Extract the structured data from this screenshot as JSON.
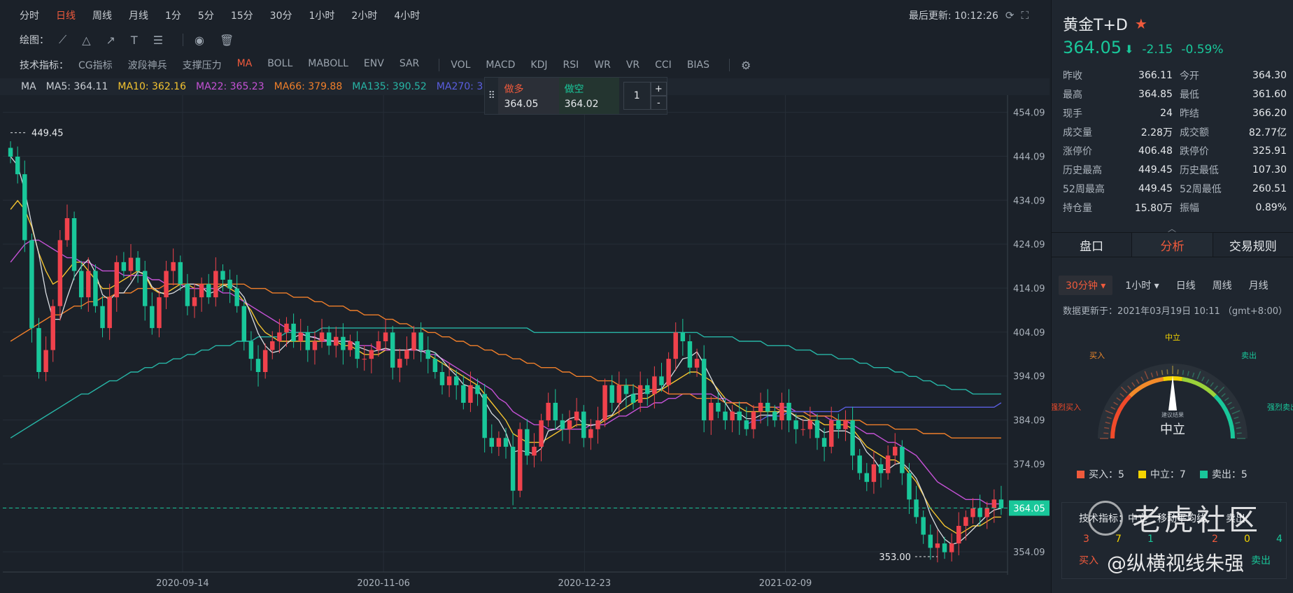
{
  "toolbar": {
    "timeframes": [
      "分时",
      "日线",
      "周线",
      "月线",
      "1分",
      "5分",
      "15分",
      "30分",
      "1小时",
      "2小时",
      "4小时"
    ],
    "active_timeframe": "日线",
    "last_update_label": "最后更新: 10:12:26",
    "draw_label": "绘图：",
    "indicator_label": "技术指标：",
    "indicators": [
      "CG指标",
      "波段神兵",
      "支撑压力",
      "MA",
      "BOLL",
      "MABOLL",
      "ENV",
      "SAR"
    ],
    "indicators2": [
      "VOL",
      "MACD",
      "KDJ",
      "RSI",
      "WR",
      "VR",
      "CCI",
      "BIAS"
    ],
    "active_indicator": "MA"
  },
  "ma_bar": {
    "label": "MA",
    "items": [
      {
        "text": "MA5: 364.11",
        "color": "#c9ced4"
      },
      {
        "text": "MA10: 362.16",
        "color": "#f4c430"
      },
      {
        "text": "MA22: 365.23",
        "color": "#c552d6"
      },
      {
        "text": "MA66: 379.88",
        "color": "#f07f2a"
      },
      {
        "text": "MA135: 390.52",
        "color": "#27b5a6"
      },
      {
        "text": "MA270: 3",
        "color": "#5a5ee0"
      }
    ]
  },
  "trade_box": {
    "long_label": "做多",
    "long_price": "364.05",
    "short_label": "做空",
    "short_price": "364.02",
    "qty": "1",
    "plus": "+",
    "minus": "-"
  },
  "chart_data": {
    "type": "candlestick",
    "y_ticks": [
      "454.09",
      "444.09",
      "434.09",
      "424.09",
      "414.09",
      "404.09",
      "394.09",
      "384.09",
      "374.09",
      "364.09",
      "354.09"
    ],
    "x_ticks": [
      "2020-09-14",
      "2020-11-06",
      "2020-12-23",
      "2021-02-09"
    ],
    "ylim": [
      349.5,
      458
    ],
    "current_price_label": "364.05",
    "current_price": 364.05,
    "high_marker": "449.45",
    "low_marker": "353.00",
    "closes": [
      444,
      440,
      425,
      405,
      395,
      400,
      410,
      425,
      430,
      418,
      412,
      418,
      410,
      405,
      412,
      420,
      418,
      421,
      418,
      410,
      405,
      412,
      418,
      420,
      415,
      410,
      412,
      415,
      412,
      418,
      416,
      414,
      410,
      402,
      398,
      395,
      400,
      402,
      404,
      406,
      402,
      404,
      400,
      402,
      404,
      401,
      403,
      400,
      402,
      398,
      398,
      400,
      402,
      404,
      396,
      398,
      400,
      404,
      400,
      398,
      395,
      392,
      394,
      392,
      388,
      392,
      390,
      380,
      378,
      380,
      378,
      368,
      382,
      376,
      378,
      384,
      388,
      384,
      382,
      384,
      386,
      380,
      382,
      384,
      392,
      388,
      392,
      390,
      388,
      392,
      390,
      394,
      392,
      398,
      404,
      402,
      396,
      398,
      384,
      388,
      386,
      384,
      386,
      384,
      382,
      386,
      388,
      386,
      384,
      388,
      384,
      382,
      382,
      384,
      380,
      378,
      384,
      382,
      384,
      376,
      372,
      370,
      374,
      372,
      376,
      378,
      372,
      366,
      362,
      358,
      355,
      356,
      354,
      356,
      360,
      362,
      364,
      362,
      364,
      366,
      364
    ],
    "colors": {
      "up": "#f0424c",
      "down": "#19c79a"
    },
    "series": [
      {
        "name": "MA10",
        "color": "#f4c430",
        "values": [
          432,
          434,
          432,
          428,
          422,
          418,
          415,
          416,
          418,
          420,
          420,
          418,
          416,
          414,
          414,
          415,
          416,
          417,
          418,
          417,
          414,
          413,
          413,
          414,
          415,
          415,
          414,
          414,
          414,
          414,
          415,
          414,
          413,
          411,
          409,
          406,
          404,
          403,
          402,
          402,
          402,
          402,
          402,
          402,
          402,
          402,
          402,
          401,
          401,
          400,
          399,
          399,
          399,
          400,
          400,
          400,
          400,
          400,
          400,
          399,
          398,
          397,
          396,
          395,
          394,
          393,
          392,
          390,
          388,
          386,
          384,
          381,
          380,
          379,
          379,
          379,
          380,
          381,
          382,
          382,
          383,
          383,
          383,
          383,
          384,
          385,
          386,
          387,
          388,
          389,
          389,
          390,
          391,
          392,
          393,
          394,
          395,
          395,
          394,
          393,
          391,
          389,
          388,
          387,
          386,
          386,
          386,
          386,
          386,
          386,
          386,
          385,
          385,
          384,
          384,
          383,
          383,
          383,
          383,
          382,
          380,
          378,
          377,
          376,
          375,
          375,
          374,
          372,
          370,
          367,
          364,
          362,
          360,
          359,
          358,
          359,
          360,
          360,
          361,
          362,
          362
        ]
      },
      {
        "name": "MA22",
        "color": "#c552d6",
        "values": [
          420,
          422,
          424,
          425,
          425,
          424,
          423,
          422,
          421,
          421,
          420,
          420,
          419,
          418,
          418,
          418,
          417,
          417,
          417,
          417,
          416,
          416,
          415,
          415,
          415,
          414,
          414,
          414,
          414,
          414,
          413,
          413,
          412,
          411,
          410,
          409,
          408,
          407,
          406,
          405,
          404,
          404,
          403,
          403,
          402,
          402,
          402,
          402,
          402,
          401,
          401,
          401,
          400,
          400,
          400,
          400,
          400,
          400,
          400,
          399,
          399,
          398,
          397,
          396,
          395,
          394,
          393,
          392,
          391,
          389,
          388,
          386,
          385,
          384,
          383,
          383,
          382,
          382,
          382,
          382,
          382,
          382,
          383,
          383,
          383,
          384,
          385,
          385,
          386,
          387,
          387,
          388,
          388,
          389,
          389,
          390,
          390,
          390,
          390,
          390,
          389,
          389,
          388,
          388,
          388,
          387,
          387,
          387,
          387,
          387,
          387,
          386,
          386,
          386,
          385,
          385,
          384,
          384,
          384,
          383,
          382,
          381,
          381,
          380,
          379,
          379,
          378,
          377,
          376,
          374,
          372,
          370,
          369,
          368,
          367,
          366,
          366,
          366,
          365,
          365,
          365
        ]
      },
      {
        "name": "MA66",
        "color": "#f07f2a",
        "values": [
          402,
          403,
          404,
          405,
          406,
          407,
          408,
          408,
          409,
          410,
          410,
          411,
          411,
          412,
          412,
          413,
          413,
          413,
          414,
          414,
          414,
          414,
          415,
          415,
          415,
          415,
          415,
          415,
          415,
          415,
          415,
          415,
          415,
          415,
          414,
          414,
          414,
          413,
          413,
          413,
          412,
          412,
          412,
          411,
          411,
          410,
          410,
          410,
          409,
          409,
          408,
          408,
          408,
          407,
          407,
          406,
          406,
          405,
          405,
          404,
          404,
          403,
          403,
          402,
          402,
          401,
          401,
          400,
          400,
          399,
          399,
          398,
          398,
          397,
          397,
          396,
          396,
          396,
          395,
          395,
          394,
          394,
          394,
          393,
          393,
          393,
          392,
          392,
          392,
          391,
          391,
          391,
          391,
          390,
          390,
          390,
          390,
          389,
          389,
          389,
          389,
          388,
          388,
          388,
          388,
          387,
          387,
          387,
          387,
          386,
          386,
          386,
          386,
          385,
          385,
          385,
          385,
          384,
          384,
          384,
          384,
          383,
          383,
          383,
          383,
          382,
          382,
          382,
          382,
          381,
          381,
          381,
          381,
          380,
          380,
          380,
          380,
          380,
          380,
          380,
          380
        ]
      },
      {
        "name": "MA135",
        "color": "#27b5a6",
        "values": [
          380,
          381,
          382,
          383,
          384,
          385,
          386,
          387,
          388,
          389,
          390,
          390,
          391,
          392,
          393,
          393,
          394,
          395,
          395,
          396,
          396,
          397,
          397,
          398,
          398,
          399,
          399,
          400,
          400,
          401,
          401,
          401,
          402,
          402,
          402,
          403,
          403,
          403,
          403,
          404,
          404,
          404,
          404,
          404,
          405,
          405,
          405,
          405,
          405,
          405,
          405,
          405,
          405,
          405,
          405,
          405,
          405,
          405,
          405,
          405,
          405,
          405,
          405,
          405,
          405,
          405,
          405,
          405,
          405,
          405,
          405,
          405,
          405,
          405,
          404,
          404,
          404,
          404,
          404,
          404,
          404,
          404,
          404,
          404,
          404,
          404,
          404,
          404,
          404,
          404,
          404,
          404,
          404,
          404,
          404,
          404,
          404,
          404,
          403,
          403,
          403,
          403,
          403,
          402,
          402,
          402,
          402,
          401,
          401,
          401,
          401,
          400,
          400,
          400,
          399,
          399,
          399,
          398,
          398,
          398,
          397,
          397,
          396,
          396,
          396,
          395,
          395,
          394,
          394,
          393,
          393,
          392,
          392,
          391,
          391,
          391,
          390,
          390,
          390,
          390,
          390
        ]
      },
      {
        "name": "MA270",
        "color": "#5a5ee0",
        "values": [
          null,
          null,
          null,
          null,
          null,
          null,
          null,
          null,
          null,
          null,
          null,
          null,
          null,
          null,
          null,
          null,
          null,
          null,
          null,
          null,
          null,
          null,
          null,
          null,
          null,
          null,
          null,
          null,
          null,
          null,
          null,
          null,
          null,
          null,
          null,
          null,
          null,
          null,
          null,
          null,
          null,
          null,
          null,
          null,
          null,
          null,
          null,
          null,
          null,
          null,
          null,
          null,
          null,
          null,
          null,
          null,
          null,
          null,
          null,
          null,
          null,
          null,
          null,
          null,
          null,
          null,
          null,
          null,
          null,
          null,
          null,
          null,
          null,
          null,
          null,
          null,
          null,
          null,
          null,
          null,
          null,
          null,
          null,
          null,
          null,
          null,
          null,
          null,
          null,
          null,
          null,
          null,
          null,
          null,
          null,
          null,
          null,
          null,
          null,
          null,
          null,
          null,
          null,
          null,
          383,
          384,
          384,
          385,
          385,
          385,
          386,
          386,
          386,
          386,
          386,
          386,
          386,
          386,
          387,
          387,
          387,
          387,
          387,
          387,
          387,
          387,
          387,
          387,
          387,
          387,
          387,
          387,
          387,
          387,
          387,
          387,
          387,
          387,
          387,
          387,
          388
        ]
      }
    ]
  },
  "panel": {
    "name": "黄金T+D",
    "price": "364.05",
    "change": "-2.15",
    "change_pct": "-0.59%",
    "colors": {
      "down": "#19c79a",
      "up": "#f05a3c"
    },
    "stats": [
      [
        "昨收",
        "366.11",
        "今开",
        "364.30"
      ],
      [
        "最高",
        "364.85",
        "最低",
        "361.60"
      ],
      [
        "现手",
        "24",
        "昨结",
        "366.20"
      ],
      [
        "成交量",
        "2.28万",
        "成交额",
        "82.77亿"
      ],
      [
        "涨停价",
        "406.48",
        "跌停价",
        "325.91"
      ],
      [
        "历史最高",
        "449.45",
        "历史最低",
        "107.30"
      ],
      [
        "52周最高",
        "449.45",
        "52周最低",
        "260.51"
      ],
      [
        "持仓量",
        "15.80万",
        "振幅",
        "0.89%"
      ]
    ],
    "tabs": [
      "盘口",
      "分析",
      "交易规则"
    ],
    "active_tab": "分析",
    "periods": [
      "30分钟 ▾",
      "1小时 ▾",
      "日线",
      "周线",
      "月线"
    ],
    "active_period": "30分钟 ▾",
    "data_time": "数据更新于：2021年03月19日 10:11 （gmt+8:00）",
    "gauge": {
      "labels": [
        "强烈买入",
        "买入",
        "中立",
        "卖出",
        "强烈卖出"
      ],
      "result_small": "建议结果",
      "result": "中立",
      "value": 0.5
    },
    "legend": [
      {
        "text": "买入：5",
        "color": "#f05a3c"
      },
      {
        "text": "中立：7",
        "color": "#f4d400"
      },
      {
        "text": "卖出：5",
        "color": "#19c79a"
      }
    ],
    "summary": {
      "head": [
        "技术指标：中立",
        "移动平均线：",
        "卖出"
      ],
      "nums": [
        "3",
        "7",
        "1",
        "",
        "2",
        "0",
        "4"
      ],
      "buy": "买入",
      "sell": "卖出"
    }
  },
  "watermark": {
    "community": "老虎社区",
    "author": "@纵横视线朱强"
  }
}
